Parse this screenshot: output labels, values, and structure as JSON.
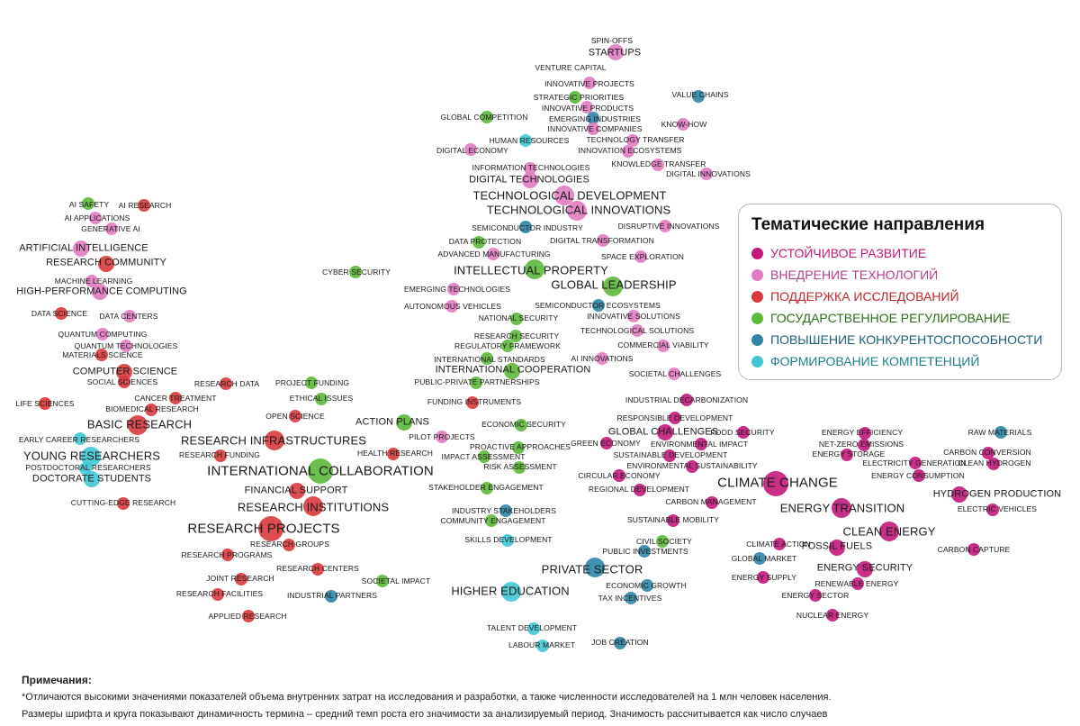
{
  "legend": {
    "title": "Тематические направления",
    "items": [
      {
        "key": "m",
        "label": "УСТОЙЧИВОЕ РАЗВИТИЕ",
        "color": "#c2187a"
      },
      {
        "key": "p",
        "label": "ВНЕДРЕНИЕ ТЕХНОЛОГИЙ",
        "color": "#e17bc0"
      },
      {
        "key": "r",
        "label": "ПОДДЕРЖКА ИССЛЕДОВАНИЙ",
        "color": "#d9393b"
      },
      {
        "key": "g",
        "label": "ГОСУДАРСТВЕННОЕ РЕГУЛИРОВАНИЕ",
        "color": "#5cb83a"
      },
      {
        "key": "b",
        "label": "ПОВЫШЕНИЕ КОНКУРЕНТОСПОСОБНОСТИ",
        "color": "#2e85a6"
      },
      {
        "key": "c",
        "label": "ФОРМИРОВАНИЕ КОМПЕТЕНЦИЙ",
        "color": "#3fc8d4"
      }
    ]
  },
  "notes": {
    "title": "Примечания:",
    "line1": "*Отличаются высокими значениями показателей объема внутренних затрат на исследования и разработки, а также численности исследователей на 1 млн человек населения.",
    "line2": "Размеры шрифта и круга показывают динамичность термина – средний темп роста его значимости за анализируемый период. Значимость рассчитывается как число случаев"
  },
  "terms": [
    {
      "t": "SPIN-OFFS",
      "c": "p",
      "s": 1
    },
    {
      "t": "STARTUPS",
      "c": "p",
      "s": 2
    },
    {
      "t": "VENTURE CAPITAL",
      "c": "p",
      "s": 1
    },
    {
      "t": "INNOVATIVE PROJECTS",
      "c": "p",
      "s": 1
    },
    {
      "t": "STRATEGIC PRIORITIES",
      "c": "g",
      "s": 1
    },
    {
      "t": "INNOVATIVE PRODUCTS",
      "c": "p",
      "s": 1
    },
    {
      "t": "EMERGING INDUSTRIES",
      "c": "b",
      "s": 1
    },
    {
      "t": "INNOVATIVE COMPANIES",
      "c": "p",
      "s": 1
    },
    {
      "t": "GLOBAL COMPETITION",
      "c": "g",
      "s": 1
    },
    {
      "t": "VALUE CHAINS",
      "c": "b",
      "s": 1
    },
    {
      "t": "KNOW-HOW",
      "c": "p",
      "s": 1
    },
    {
      "t": "HUMAN RESOURCES",
      "c": "c",
      "s": 1
    },
    {
      "t": "TECHNOLOGY TRANSFER",
      "c": "p",
      "s": 1
    },
    {
      "t": "DIGITAL ECONOMY",
      "c": "p",
      "s": 1
    },
    {
      "t": "INNOVATION ECOSYSTEMS",
      "c": "p",
      "s": 1
    },
    {
      "t": "KNOWLEDGE TRANSFER",
      "c": "p",
      "s": 1
    },
    {
      "t": "INFORMATION TECHNOLOGIES",
      "c": "p",
      "s": 1
    },
    {
      "t": "DIGITAL INNOVATIONS",
      "c": "p",
      "s": 1
    },
    {
      "t": "DIGITAL TECHNOLOGIES",
      "c": "p",
      "s": 2
    },
    {
      "t": "TECHNOLOGICAL DEVELOPMENT",
      "c": "p",
      "s": 3
    },
    {
      "t": "TECHNOLOGICAL INNOVATIONS",
      "c": "p",
      "s": 3
    },
    {
      "t": "SEMICONDUCTOR INDUSTRY",
      "c": "b",
      "s": 1
    },
    {
      "t": "DISRUPTIVE INNOVATIONS",
      "c": "p",
      "s": 1
    },
    {
      "t": "DATA PROTECTION",
      "c": "g",
      "s": 1
    },
    {
      "t": "DIGITAL TRANSFORMATION",
      "c": "p",
      "s": 1
    },
    {
      "t": "ADVANCED MANUFACTURING",
      "c": "p",
      "s": 1
    },
    {
      "t": "SPACE EXPLORATION",
      "c": "p",
      "s": 1
    },
    {
      "t": "INTELLECTUAL PROPERTY",
      "c": "g",
      "s": 3
    },
    {
      "t": "GLOBAL LEADERSHIP",
      "c": "g",
      "s": 3
    },
    {
      "t": "CYBER SECURITY",
      "c": "g",
      "s": 1
    },
    {
      "t": "EMERGING TECHNOLOGIES",
      "c": "p",
      "s": 1
    },
    {
      "t": "SEMICONDUCTOR ECOSYSTEMS",
      "c": "b",
      "s": 1
    },
    {
      "t": "AUTONOMOUS VEHICLES",
      "c": "p",
      "s": 1
    },
    {
      "t": "INNOVATIVE SOLUTIONS",
      "c": "p",
      "s": 1
    },
    {
      "t": "NATIONAL SECURITY",
      "c": "g",
      "s": 1
    },
    {
      "t": "TECHNOLOGICAL SOLUTIONS",
      "c": "p",
      "s": 1
    },
    {
      "t": "RESEARCH SECURITY",
      "c": "g",
      "s": 1
    },
    {
      "t": "COMMERCIAL VIABILITY",
      "c": "p",
      "s": 1
    },
    {
      "t": "REGULATORY FRAMEWORK",
      "c": "g",
      "s": 1
    },
    {
      "t": "INTERNATIONAL STANDARDS",
      "c": "g",
      "s": 1
    },
    {
      "t": "AI INNOVATIONS",
      "c": "p",
      "s": 1
    },
    {
      "t": "INTERNATIONAL COOPERATION",
      "c": "g",
      "s": 2
    },
    {
      "t": "SOCIETAL CHALLENGES",
      "c": "p",
      "s": 1
    },
    {
      "t": "PUBLIC-PRIVATE PARTNERSHIPS",
      "c": "g",
      "s": 1
    },
    {
      "t": "FUNDING INSTRUMENTS",
      "c": "r",
      "s": 1
    },
    {
      "t": "INDUSTRIAL DECARBONIZATION",
      "c": "m",
      "s": 1
    },
    {
      "t": "RESPONSIBLE DEVELOPMENT",
      "c": "m",
      "s": 1
    },
    {
      "t": "ECONOMIC SECURITY",
      "c": "g",
      "s": 1
    },
    {
      "t": "ACTION PLANS",
      "c": "g",
      "s": 2
    },
    {
      "t": "GLOBAL CHALLENGES",
      "c": "m",
      "s": 2
    },
    {
      "t": "FOOD SECURITY",
      "c": "m",
      "s": 1
    },
    {
      "t": "PILOT PROJECTS",
      "c": "p",
      "s": 1
    },
    {
      "t": "GREEN ECONOMY",
      "c": "m",
      "s": 1
    },
    {
      "t": "ENVIRONMENTAL IMPACT",
      "c": "m",
      "s": 1
    },
    {
      "t": "PROACTIVE APPROACHES",
      "c": "g",
      "s": 1
    },
    {
      "t": "IMPACT ASSESSMENT",
      "c": "g",
      "s": 1
    },
    {
      "t": "SUSTAINABLE DEVELOPMENT",
      "c": "m",
      "s": 1
    },
    {
      "t": "RISK ASSESSMENT",
      "c": "g",
      "s": 1
    },
    {
      "t": "ENVIRONMENTAL SUSTAINABILITY",
      "c": "m",
      "s": 1
    },
    {
      "t": "CIRCULAR ECONOMY",
      "c": "m",
      "s": 1
    },
    {
      "t": "STAKEHOLDER ENGAGEMENT",
      "c": "g",
      "s": 1
    },
    {
      "t": "REGIONAL DEVELOPMENT",
      "c": "m",
      "s": 1
    },
    {
      "t": "CARBON MANAGEMENT",
      "c": "m",
      "s": 1
    },
    {
      "t": "INDUSTRY STAKEHOLDERS",
      "c": "b",
      "s": 1
    },
    {
      "t": "COMMUNITY ENGAGEMENT",
      "c": "g",
      "s": 1
    },
    {
      "t": "SUSTAINABLE MOBILITY",
      "c": "m",
      "s": 1
    },
    {
      "t": "SKILLS DEVELOPMENT",
      "c": "c",
      "s": 1
    },
    {
      "t": "CIVIL SOCIETY",
      "c": "g",
      "s": 1
    },
    {
      "t": "PUBLIC INVESTMENTS",
      "c": "b",
      "s": 1
    },
    {
      "t": "PRIVATE SECTOR",
      "c": "b",
      "s": 3
    },
    {
      "t": "ECONOMIC GROWTH",
      "c": "b",
      "s": 1
    },
    {
      "t": "TAX INCENTIVES",
      "c": "b",
      "s": 1
    },
    {
      "t": "HIGHER EDUCATION",
      "c": "c",
      "s": 3
    },
    {
      "t": "TALENT DEVELOPMENT",
      "c": "c",
      "s": 1
    },
    {
      "t": "LABOUR MARKET",
      "c": "c",
      "s": 1
    },
    {
      "t": "JOB CREATION",
      "c": "b",
      "s": 1
    },
    {
      "t": "AI SAFETY",
      "c": "g",
      "s": 1
    },
    {
      "t": "AI RESEARCH",
      "c": "r",
      "s": 1
    },
    {
      "t": "AI APPLICATIONS",
      "c": "p",
      "s": 1
    },
    {
      "t": "GENERATIVE AI",
      "c": "p",
      "s": 1
    },
    {
      "t": "ARTIFICIAL INTELLIGENCE",
      "c": "p",
      "s": 2
    },
    {
      "t": "RESEARCH COMMUNITY",
      "c": "r",
      "s": 2
    },
    {
      "t": "MACHINE LEARNING",
      "c": "p",
      "s": 1
    },
    {
      "t": "HIGH-PERFORMANCE COMPUTING",
      "c": "p",
      "s": 2
    },
    {
      "t": "DATA SCIENCE",
      "c": "r",
      "s": 1
    },
    {
      "t": "DATA CENTERS",
      "c": "p",
      "s": 1
    },
    {
      "t": "QUANTUM COMPUTING",
      "c": "p",
      "s": 1
    },
    {
      "t": "QUANTUM TECHNOLOGIES",
      "c": "p",
      "s": 1
    },
    {
      "t": "MATERIALS SCIENCE",
      "c": "r",
      "s": 1
    },
    {
      "t": "COMPUTER SCIENCE",
      "c": "r",
      "s": 2
    },
    {
      "t": "SOCIAL SCIENCES",
      "c": "r",
      "s": 1
    },
    {
      "t": "RESEARCH DATA",
      "c": "r",
      "s": 1
    },
    {
      "t": "PROJECT FUNDING",
      "c": "g",
      "s": 1
    },
    {
      "t": "CANCER TREATMENT",
      "c": "r",
      "s": 1
    },
    {
      "t": "ETHICAL ISSUES",
      "c": "g",
      "s": 1
    },
    {
      "t": "LIFE SCIENCES",
      "c": "r",
      "s": 1
    },
    {
      "t": "BIOMEDICAL RESEARCH",
      "c": "r",
      "s": 1
    },
    {
      "t": "OPEN SCIENCE",
      "c": "r",
      "s": 1
    },
    {
      "t": "BASIC RESEARCH",
      "c": "r",
      "s": 3
    },
    {
      "t": "EARLY CAREER RESEARCHERS",
      "c": "c",
      "s": 1
    },
    {
      "t": "RESEARCH INFRASTRUCTURES",
      "c": "r",
      "s": 3
    },
    {
      "t": "YOUNG RESEARCHERS",
      "c": "c",
      "s": 3
    },
    {
      "t": "HEALTH RESEARCH",
      "c": "r",
      "s": 1
    },
    {
      "t": "RESEARCH FUNDING",
      "c": "r",
      "s": 1
    },
    {
      "t": "POSTDOCTORAL RESEARCHERS",
      "c": "c",
      "s": 1
    },
    {
      "t": "INTERNATIONAL COLLABORATION",
      "c": "g",
      "s": 4
    },
    {
      "t": "DOCTORATE STUDENTS",
      "c": "c",
      "s": 2
    },
    {
      "t": "FINANCIAL SUPPORT",
      "c": "r",
      "s": 2
    },
    {
      "t": "CUTTING-EDGE RESEARCH",
      "c": "r",
      "s": 1
    },
    {
      "t": "RESEARCH INSTITUTIONS",
      "c": "r",
      "s": 3
    },
    {
      "t": "RESEARCH PROJECTS",
      "c": "r",
      "s": 4
    },
    {
      "t": "RESEARCH GROUPS",
      "c": "r",
      "s": 1
    },
    {
      "t": "RESEARCH PROGRAMS",
      "c": "r",
      "s": 1
    },
    {
      "t": "RESEARCH CENTERS",
      "c": "r",
      "s": 1
    },
    {
      "t": "JOINT RESEARCH",
      "c": "r",
      "s": 1
    },
    {
      "t": "SOCIETAL IMPACT",
      "c": "g",
      "s": 1
    },
    {
      "t": "RESEARCH FACILITIES",
      "c": "r",
      "s": 1
    },
    {
      "t": "INDUSTRIAL PARTNERS",
      "c": "b",
      "s": 1
    },
    {
      "t": "APPLIED RESEARCH",
      "c": "r",
      "s": 1
    },
    {
      "t": "CLIMATE CHANGE",
      "c": "m",
      "s": 4
    },
    {
      "t": "ENERGY EFFICIENCY",
      "c": "m",
      "s": 1
    },
    {
      "t": "RAW MATERIALS",
      "c": "b",
      "s": 1
    },
    {
      "t": "NET-ZERO EMISSIONS",
      "c": "m",
      "s": 1
    },
    {
      "t": "CARBON CONVERSION",
      "c": "m",
      "s": 1
    },
    {
      "t": "ENERGY STORAGE",
      "c": "m",
      "s": 1
    },
    {
      "t": "ELECTRICITY GENERATION",
      "c": "m",
      "s": 1
    },
    {
      "t": "CLEAN HYDROGEN",
      "c": "m",
      "s": 1
    },
    {
      "t": "ENERGY CONSUMPTION",
      "c": "m",
      "s": 1
    },
    {
      "t": "HYDROGEN PRODUCTION",
      "c": "m",
      "s": 2
    },
    {
      "t": "ENERGY TRANSITION",
      "c": "m",
      "s": 3
    },
    {
      "t": "ELECTRIC VEHICLES",
      "c": "m",
      "s": 1
    },
    {
      "t": "CLEAN ENERGY",
      "c": "m",
      "s": 3
    },
    {
      "t": "CLIMATE ACTION",
      "c": "m",
      "s": 1
    },
    {
      "t": "FOSSIL FUELS",
      "c": "m",
      "s": 2
    },
    {
      "t": "CARBON CAPTURE",
      "c": "m",
      "s": 1
    },
    {
      "t": "GLOBAL MARKET",
      "c": "b",
      "s": 1
    },
    {
      "t": "ENERGY SECURITY",
      "c": "m",
      "s": 2
    },
    {
      "t": "ENERGY SUPPLY",
      "c": "m",
      "s": 1
    },
    {
      "t": "RENEWABLE ENERGY",
      "c": "m",
      "s": 1
    },
    {
      "t": "ENERGY SECTOR",
      "c": "m",
      "s": 1
    },
    {
      "t": "NUCLEAR ENERGY",
      "c": "m",
      "s": 1
    }
  ]
}
